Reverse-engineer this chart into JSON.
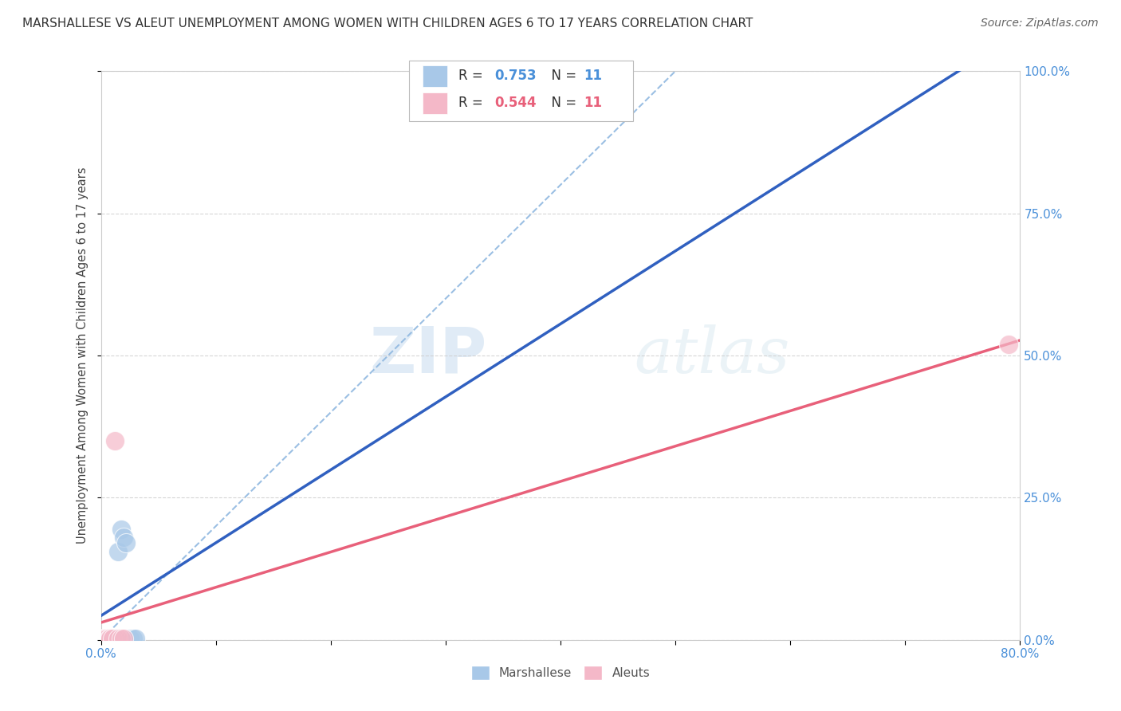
{
  "title": "MARSHALLESE VS ALEUT UNEMPLOYMENT AMONG WOMEN WITH CHILDREN AGES 6 TO 17 YEARS CORRELATION CHART",
  "source": "Source: ZipAtlas.com",
  "xlim": [
    0.0,
    0.8
  ],
  "ylim": [
    0.0,
    1.0
  ],
  "marshallese_x": [
    0.005,
    0.008,
    0.01,
    0.012,
    0.015,
    0.018,
    0.02,
    0.022,
    0.025,
    0.028,
    0.03
  ],
  "marshallese_y": [
    0.002,
    0.002,
    0.002,
    0.002,
    0.155,
    0.195,
    0.18,
    0.17,
    0.002,
    0.002,
    0.002
  ],
  "aleuts_x": [
    0.002,
    0.004,
    0.005,
    0.007,
    0.008,
    0.01,
    0.012,
    0.015,
    0.018,
    0.02,
    0.79
  ],
  "aleuts_y": [
    0.002,
    0.002,
    0.002,
    0.002,
    0.002,
    0.002,
    0.35,
    0.002,
    0.002,
    0.002,
    0.52
  ],
  "marshallese_color": "#a8c8e8",
  "aleuts_color": "#f4b8c8",
  "marshallese_line_color": "#3060c0",
  "aleuts_line_color": "#e8607a",
  "ref_line_color": "#90b8e0",
  "legend_R_marshallese": "0.753",
  "legend_N_marshallese": "11",
  "legend_R_aleuts": "0.544",
  "legend_N_aleuts": "11",
  "watermark_zip": "ZIP",
  "watermark_atlas": "atlas",
  "background_color": "#ffffff",
  "grid_color": "#cccccc",
  "title_color": "#333333",
  "axis_tick_color": "#4a90d9",
  "ylabel": "Unemployment Among Women with Children Ages 6 to 17 years"
}
